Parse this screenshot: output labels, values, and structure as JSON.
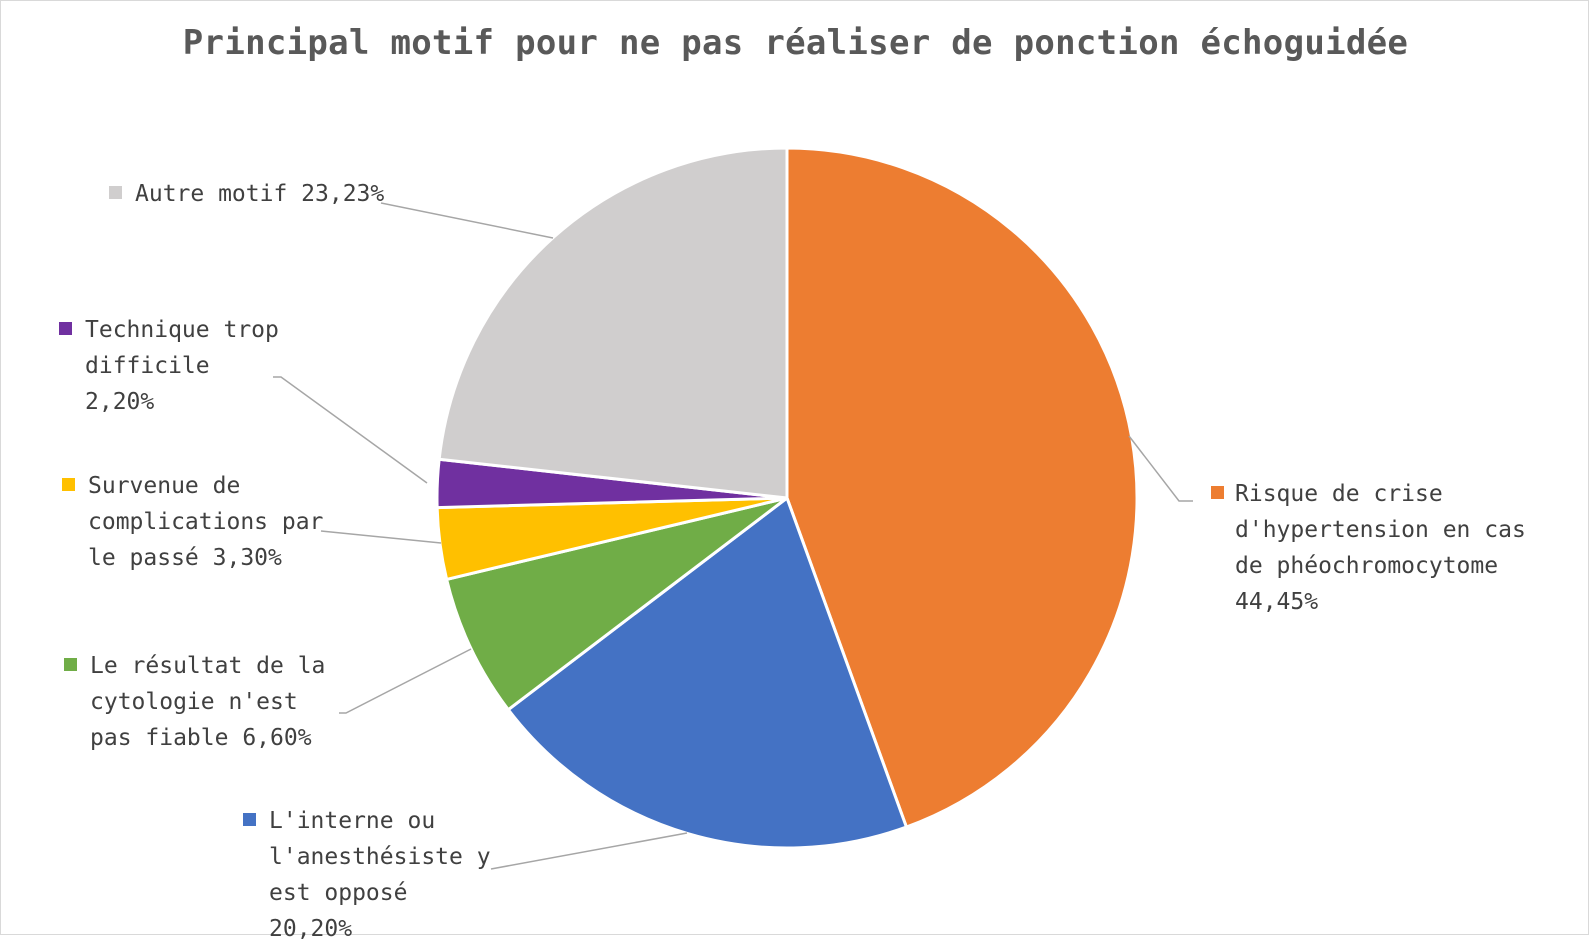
{
  "chart_data": {
    "type": "pie",
    "title": "Principal motif pour ne pas réaliser de ponction échoguidée",
    "slices": [
      {
        "label": "Risque de crise d'hypertension en cas de phéochromocytome 44,45%",
        "value": 44.45,
        "color": "#ED7D31"
      },
      {
        "label": "L'interne ou l'anesthésiste y est opposé 20,20%",
        "value": 20.2,
        "color": "#4472C4"
      },
      {
        "label": "Le résultat de la cytologie n'est pas fiable 6,60%",
        "value": 6.6,
        "color": "#70AD47"
      },
      {
        "label": "Survenue de complications par le passé 3,30%",
        "value": 3.3,
        "color": "#FFC000"
      },
      {
        "label": "Technique trop difficile 2,20%",
        "value": 2.2,
        "color": "#7030A0"
      },
      {
        "label": "Autre motif 23,23%",
        "value": 23.23,
        "color": "#D0CECE"
      }
    ]
  }
}
